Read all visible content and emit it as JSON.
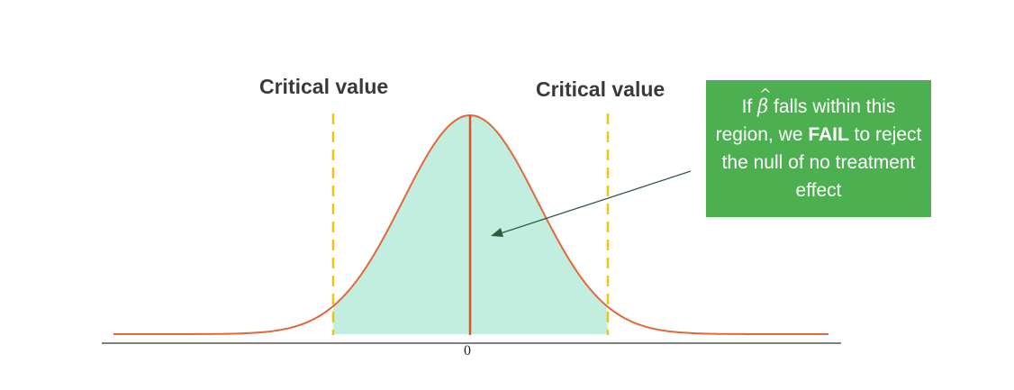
{
  "labels": {
    "critical_left": "Critical value",
    "critical_right": "Critical value",
    "zero": "0"
  },
  "callout": {
    "prefix": "If",
    "symbol": "β",
    "symbol_hat": "^",
    "text_1": " falls within this region, we ",
    "emphasis": "FAIL",
    "text_2": " to reject the null of no treatment effect"
  },
  "colors": {
    "curve": "#e2683a",
    "acceptance_region": "#c2eedf",
    "critical_lines": "#f1c40f",
    "center_line": "#e2502a",
    "axis": "#555555",
    "callout_background": "#4caf50",
    "arrow": "#2f5b43"
  }
}
